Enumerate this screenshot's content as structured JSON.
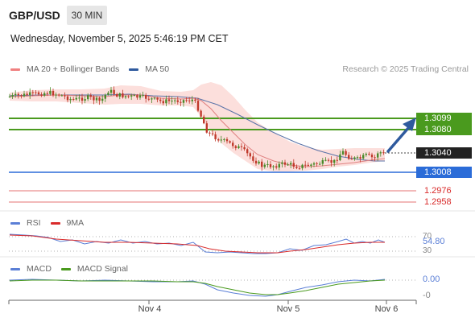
{
  "header": {
    "symbol": "GBP/USD",
    "timeframe": "30 MIN",
    "datetime": "Wednesday, November 5, 2025 5:46:19 PM CET"
  },
  "legend_main": {
    "items": [
      {
        "label": "MA 20 + Bollinger Bands",
        "color": "#f08080"
      },
      {
        "label": "MA 50",
        "color": "#2f5a9e"
      }
    ],
    "credit": "Research © 2025 Trading Central"
  },
  "price_levels": [
    {
      "value": "1.3099",
      "kind": "resistance",
      "color": "#4a9a1e"
    },
    {
      "value": "1.3080",
      "kind": "resistance",
      "color": "#4a9a1e"
    },
    {
      "value": "1.3040",
      "kind": "current",
      "color": "#222222"
    },
    {
      "value": "1.3008",
      "kind": "pivot",
      "color": "#2b6cd8"
    },
    {
      "value": "1.2976",
      "kind": "support",
      "color": "#d92b2b"
    },
    {
      "value": "1.2958",
      "kind": "support",
      "color": "#d92b2b"
    }
  ],
  "rsi_panel": {
    "legend": [
      {
        "label": "RSI",
        "color": "#5b7fd6"
      },
      {
        "label": "9MA",
        "color": "#d92b2b"
      }
    ],
    "levels": [
      "70",
      "30"
    ],
    "value": "54.80"
  },
  "macd_panel": {
    "legend": [
      {
        "label": "MACD",
        "color": "#5b7fd6"
      },
      {
        "label": "MACD Signal",
        "color": "#4a9a1e"
      }
    ],
    "levels": [
      "0.00",
      "-0"
    ]
  },
  "x_axis": {
    "labels": [
      "Nov 4",
      "Nov 5",
      "Nov 6"
    ]
  },
  "colors": {
    "candle_up": "#4a8a2a",
    "candle_down": "#c0392b",
    "bollinger_fill": "#fbd9d6",
    "arrow": "#2f5a9e"
  }
}
